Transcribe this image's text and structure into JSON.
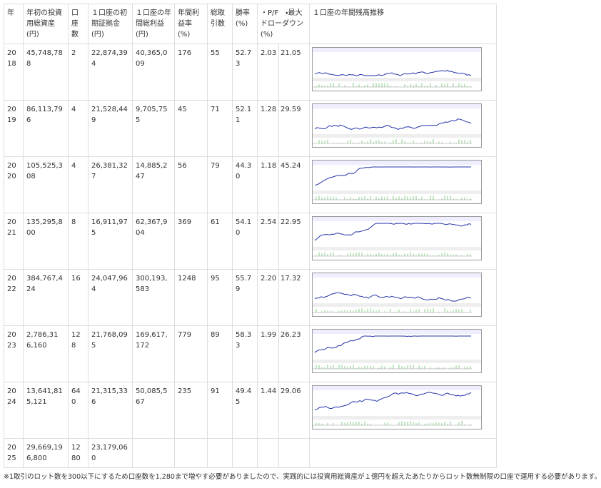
{
  "table": {
    "header": [
      "年",
      "年初の投資用総資産(円)",
      "口座数",
      "１口座の初期証拠金(円)",
      "１口座の年間総利益(円)",
      "年間利益率(%)",
      "総取引数",
      "勝率(%)",
      "・P/F　・最大ドローダウン(%)",
      "１口座の年間残高推移"
    ],
    "rows": [
      [
        "2018",
        "45,748,788",
        "2",
        "22,874,394",
        "40,365,009",
        "176",
        "55",
        "52.73",
        "2.03",
        "21.05"
      ],
      [
        "2019",
        "86,113,796",
        "4",
        "21,528,449",
        "9,705,755",
        "45",
        "71",
        "52.11",
        "1.28",
        "29.59"
      ],
      [
        "2020",
        "105,525,308",
        "4",
        "26,381,327",
        "14,885,247",
        "56",
        "79",
        "44.30",
        "1.18",
        "45.24"
      ],
      [
        "2021",
        "135,295,800",
        "8",
        "16,911,975",
        "62,367,904",
        "369",
        "61",
        "54.10",
        "2.54",
        "22.95"
      ],
      [
        "2022",
        "384,767,424",
        "16",
        "24,047,964",
        "300,193,583",
        "1248",
        "95",
        "55.79",
        "2.20",
        "17.32"
      ],
      [
        "2023",
        "2,786,316,160",
        "128",
        "21,768,095",
        "169,617,172",
        "779",
        "89",
        "58.33",
        "1.99",
        "26.23"
      ],
      [
        "2024",
        "13,641,815,121",
        "640",
        "21,315,336",
        "50,085,567",
        "235",
        "91",
        "49.45",
        "1.44",
        "29.06"
      ],
      [
        "2025",
        "29,669,196,800",
        "1280",
        "23,179,060"
      ]
    ]
  },
  "footnote": "※1取引のロット数を300以下にするため口座数を1,280まで増やす必要がありましたので、実践的には投資用総資産が１億円を超えたあたりからロット数無制限の口座で運用する必要があります。"
}
